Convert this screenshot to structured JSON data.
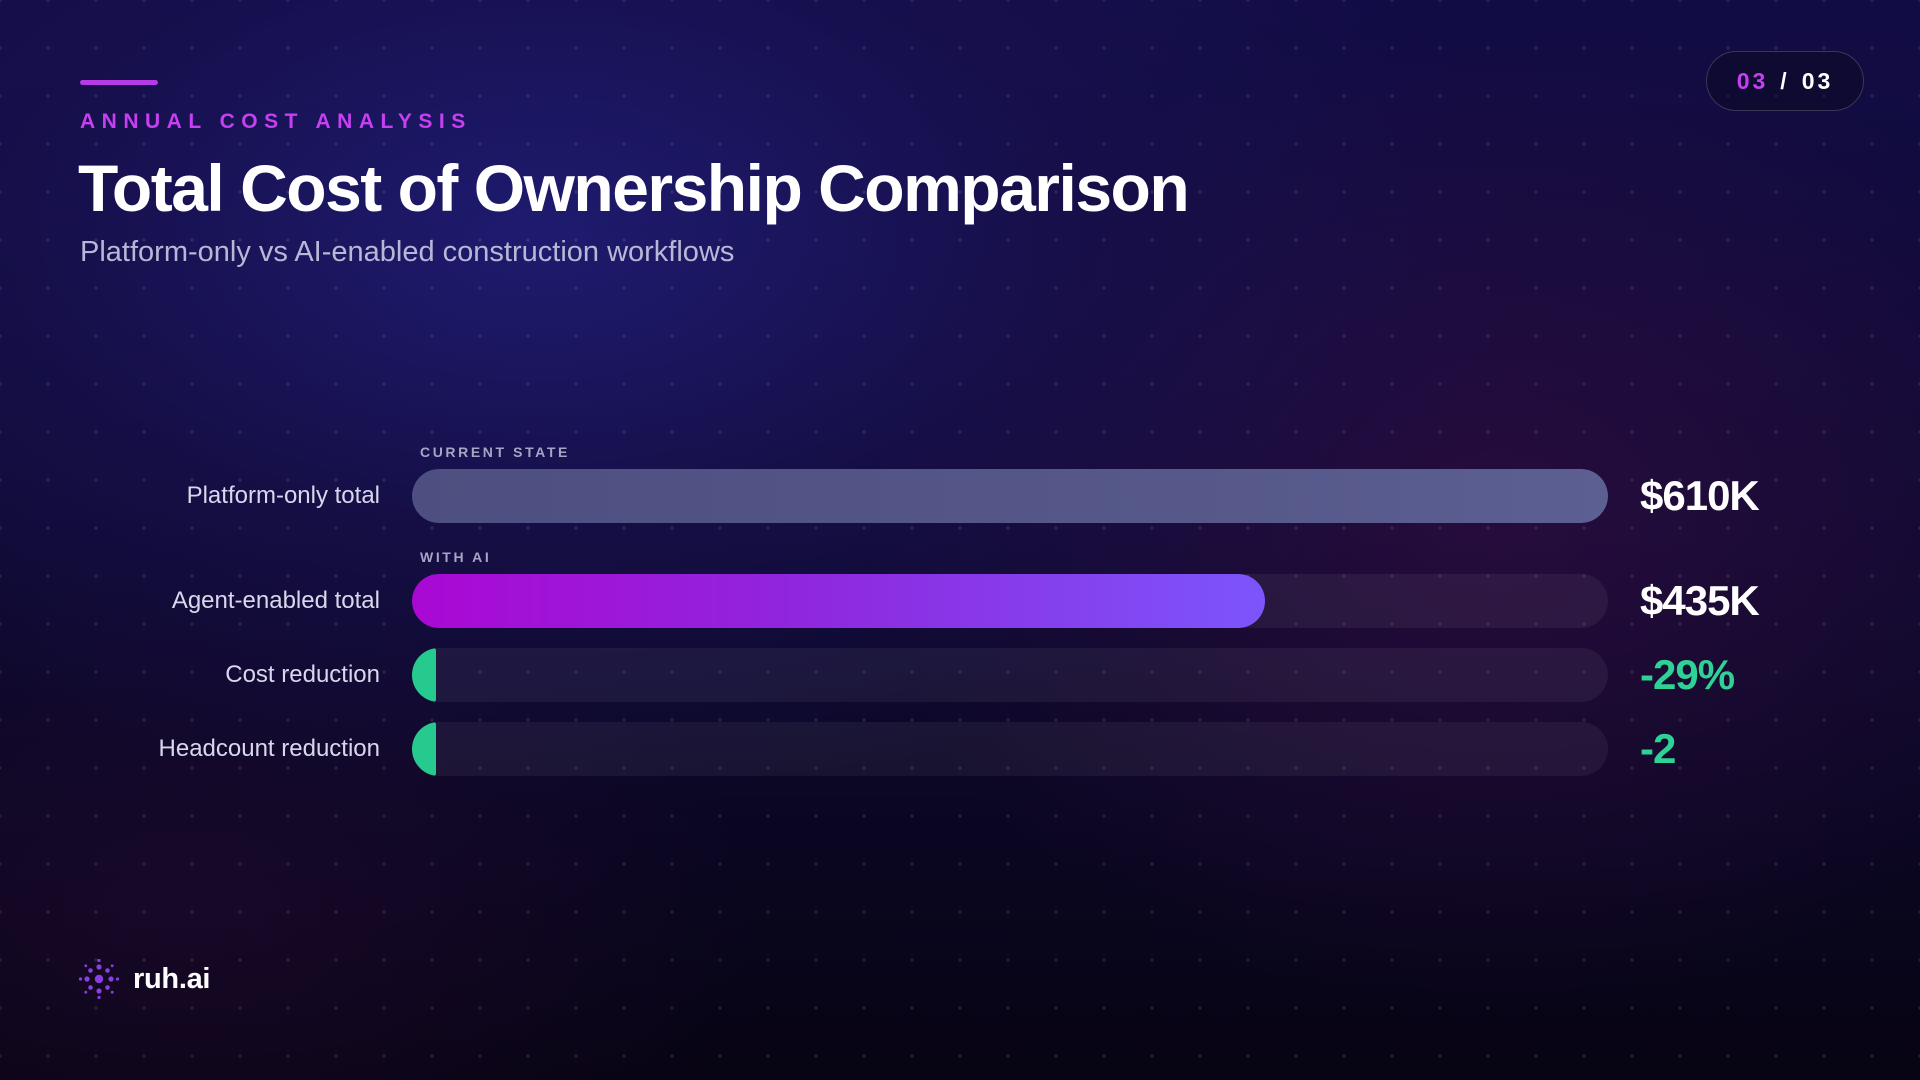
{
  "header": {
    "eyebrow": "ANNUAL COST ANALYSIS",
    "title": "Total Cost of Ownership Comparison",
    "subtitle": "Platform-only vs AI-enabled construction workflows"
  },
  "pagination": {
    "current": "03",
    "separator": "/",
    "total": "03"
  },
  "brand": {
    "name": "ruh.ai"
  },
  "colors": {
    "accent": "#c63ff0",
    "platform_bar": "#565a8c",
    "ai_bar_start": "#aa08d4",
    "ai_bar_end": "#7c55fb",
    "reduction_green": "#26c98e"
  },
  "chart_data": {
    "type": "bar",
    "orientation": "horizontal",
    "categories": [
      "Platform-only total",
      "Agent-enabled total",
      "Cost reduction",
      "Headcount reduction"
    ],
    "values": [
      610,
      435,
      29,
      2
    ],
    "units": [
      "$K",
      "$K",
      "%",
      "headcount"
    ],
    "display_values": [
      "$610K",
      "$435K",
      "-29%",
      "-2"
    ],
    "fill_fraction": [
      1.0,
      0.713,
      0.02,
      0.02
    ],
    "tags": [
      "CURRENT STATE",
      "WITH AI",
      "",
      ""
    ],
    "grid": false,
    "legend": "none"
  }
}
